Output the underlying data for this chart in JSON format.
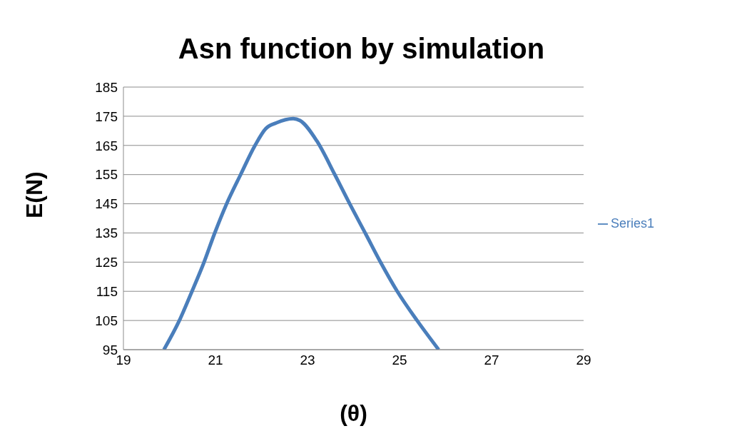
{
  "chart_data": {
    "type": "line",
    "title": "Asn function by simulation",
    "xlabel": "(θ)",
    "ylabel": "E(N)",
    "x": [
      19.88,
      20.21,
      20.49,
      20.75,
      20.98,
      21.24,
      21.55,
      21.86,
      22.09,
      22.32,
      22.69,
      22.84,
      23.2,
      23.59,
      23.92,
      24.26,
      24.59,
      24.95,
      25.39,
      25.85
    ],
    "series": [
      {
        "name": "Series1",
        "color": "#4a7ebb",
        "values": [
          95,
          104.8,
          115,
          124.9,
          134.8,
          144.9,
          155.1,
          165,
          170.7,
          172.7,
          174.2,
          173.5,
          166.6,
          155.1,
          144.9,
          134.8,
          124.9,
          115,
          104.8,
          95
        ]
      }
    ],
    "xlim": [
      19,
      29
    ],
    "xticks": [
      19,
      21,
      23,
      25,
      27,
      29
    ],
    "ylim": [
      95,
      185
    ],
    "yticks": [
      95,
      105,
      115,
      125,
      135,
      145,
      155,
      165,
      175,
      185
    ],
    "grid": "y",
    "legend": "right",
    "marker": "none",
    "line_style": "solid"
  }
}
